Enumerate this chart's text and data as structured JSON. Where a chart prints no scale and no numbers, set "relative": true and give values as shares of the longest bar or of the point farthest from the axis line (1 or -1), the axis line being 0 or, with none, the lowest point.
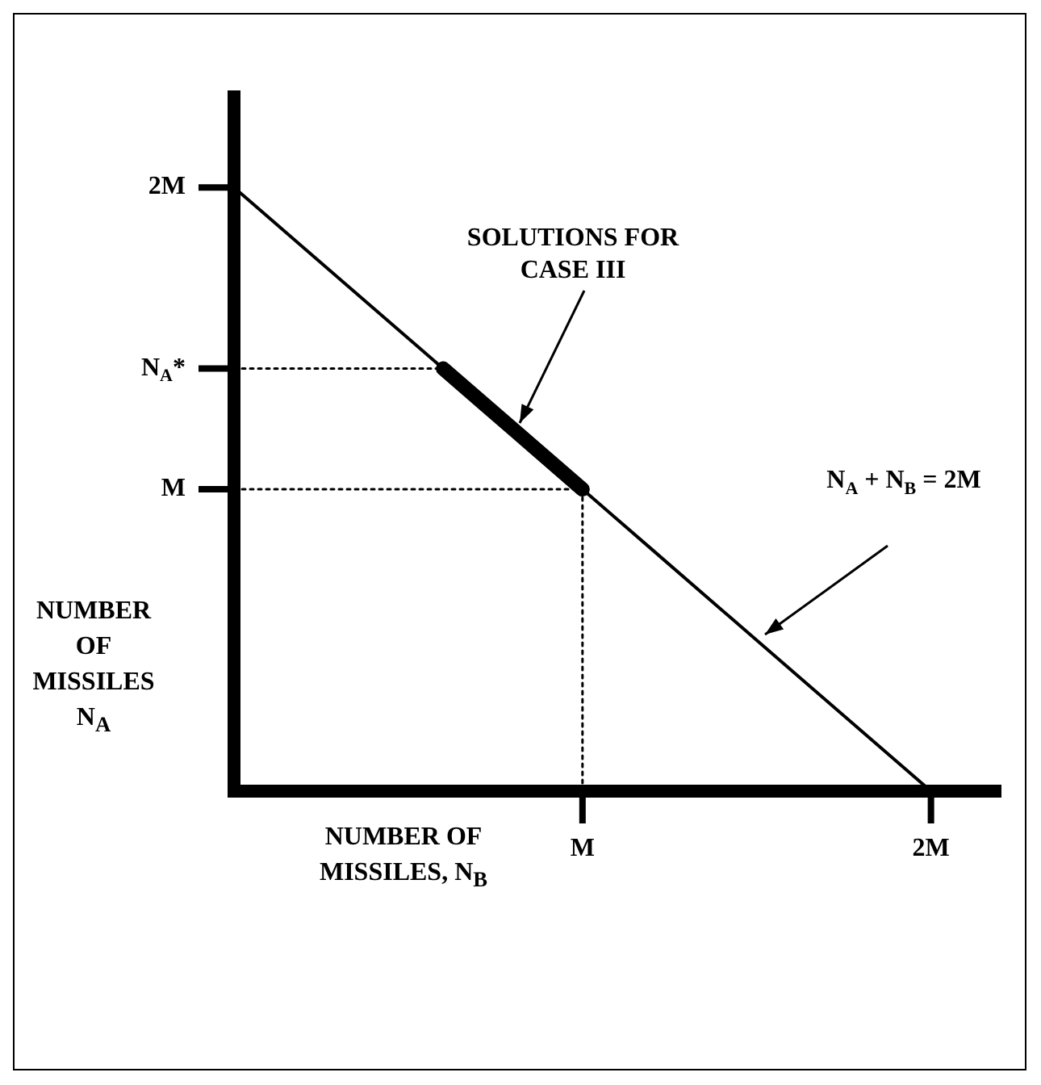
{
  "chart_data": {
    "type": "line",
    "relative": true,
    "xlabel": "NUMBER OF MISSILES, N$_{B}$",
    "ylabel": "NUMBER OF MISSILES N$_{A}$",
    "categories": [
      null,
      null,
      null,
      null,
      null,
      "M",
      null,
      null,
      null,
      null,
      "2M",
      null
    ],
    "legend": false,
    "marker": "none",
    "series": [
      {
        "color": "#000000",
        "values": [
          1,
          0.9,
          0.8,
          0.7,
          0.6,
          0.5,
          0.4,
          0.3,
          0.2,
          0.1,
          0,
          null
        ],
        "line_style": "solid"
      },
      {
        "color": "#000000",
        "values": [
          null,
          null,
          null,
          0.7,
          0.6,
          0.5,
          null,
          null,
          null,
          null,
          null,
          null
        ],
        "line_style": "solid"
      },
      {
        "color": "#000000",
        "values": [
          0.7,
          0.7,
          0.7,
          0.7,
          null,
          null,
          null,
          null,
          null,
          null,
          null,
          null
        ],
        "line_style": "dotted"
      },
      {
        "color": "#000000",
        "values": [
          0.5,
          0.5,
          0.5,
          0.5,
          0.5,
          0.5,
          null,
          null,
          null,
          null,
          null,
          null
        ],
        "line_style": "dotted"
      },
      {
        "color": "#000000",
        "x": [
          "M",
          "M"
        ],
        "values": [
          0.5,
          0
        ],
        "line_style": "dotted"
      }
    ],
    "annotations": [
      "SOLUTIONS FOR CASE III",
      "N$_{A}$ + N$_{B}$ = 2M",
      "2M",
      "N$_{A}$*",
      "M"
    ]
  }
}
